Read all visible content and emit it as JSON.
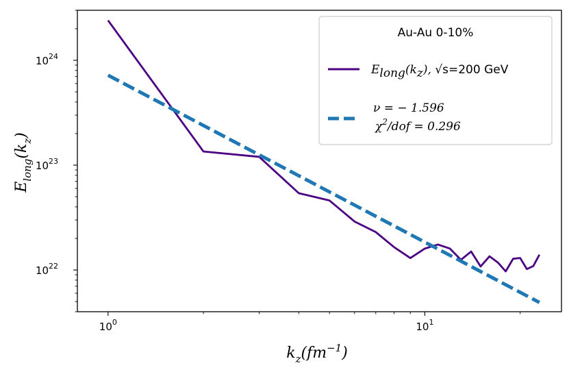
{
  "chart_data": {
    "type": "line",
    "x_scale": "log",
    "y_scale": "log",
    "xlim": [
      0.8,
      27
    ],
    "ylim": [
      4e+21,
      3e+24
    ],
    "x_ticks": [
      {
        "value": 1,
        "base": "10",
        "exp": "0"
      },
      {
        "value": 10,
        "base": "10",
        "exp": "1"
      }
    ],
    "y_ticks": [
      {
        "value": 1e+22,
        "base": "10",
        "exp": "22"
      },
      {
        "value": 1e+23,
        "base": "10",
        "exp": "23"
      },
      {
        "value": 1e+24,
        "base": "10",
        "exp": "24"
      }
    ],
    "xlabel": {
      "main": "k",
      "sub": "z",
      "rest": "(fm",
      "sup": "−1",
      "close": ")"
    },
    "ylabel": {
      "main": "E",
      "sub": "long",
      "rest": "(k",
      "sub2": "z",
      "close": ")"
    },
    "grid": false,
    "legend": {
      "position": "top-right",
      "title": "Au-Au  0-10%",
      "entry1": {
        "main": "E",
        "sub": "long",
        "open": "(k",
        "sub2": "z",
        "close": "),",
        "rest": "  √s=200 GeV"
      },
      "entry2_line1": "ν = − 1.596",
      "entry2_line2": {
        "main": "χ",
        "sup": "2",
        "rest": "/dof = 0.296"
      }
    },
    "series": [
      {
        "color": "#4b0082",
        "style": "solid",
        "x": [
          1,
          2,
          3,
          4,
          5,
          6,
          7,
          8,
          9,
          10,
          11,
          12,
          13,
          14,
          15,
          16,
          17,
          18,
          19,
          20,
          21,
          22,
          23
        ],
        "y": [
          2.4e+24,
          1.35e+23,
          1.2e+23,
          5.4e+22,
          4.6e+22,
          2.9e+22,
          2.3e+22,
          1.65e+22,
          1.3e+22,
          1.6e+22,
          1.75e+22,
          1.6e+22,
          1.25e+22,
          1.5e+22,
          1.08e+22,
          1.35e+22,
          1.18e+22,
          9.7e+21,
          1.28e+22,
          1.3e+22,
          1.02e+22,
          1.09e+22,
          1.4e+22
        ]
      },
      {
        "color": "#1f77b4",
        "style": "dashed",
        "x": [
          1,
          23
        ],
        "y": [
          7.2e+23,
          4.9e+21
        ]
      }
    ]
  }
}
